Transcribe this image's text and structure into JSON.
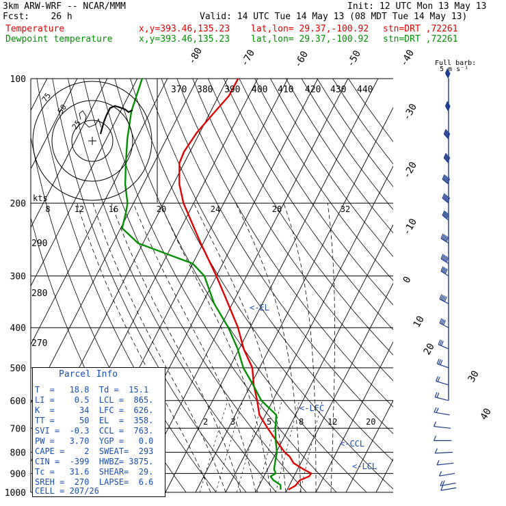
{
  "header": {
    "model": "3km ARW-WRF -- NCAR/MMM",
    "init": "Init: 12 UTC Mon 13 May 13",
    "fcst": "Fcst:    26 h",
    "valid": "Valid: 14 UTC Tue 14 May 13 (08 MDT Tue 14 May 13)",
    "temp_line": "Temperature",
    "dew_line": "Dewpoint temperature",
    "xy": "x,y=393.46,135.23",
    "latlon": "lat,lon= 29.37,-100.92",
    "stn": "stn=DRT ,72261"
  },
  "colors": {
    "temperature": "#e00000",
    "dewpoint": "#009000",
    "barbs": "#1a3a8c",
    "parcel": "#1a4db3"
  },
  "parcel_info": {
    "title": "Parcel Info",
    "rows": [
      "T  =   18.8  Td =  15.1",
      "LI =    0.5  LCL =  865.",
      "K  =     34  LFC =  626.",
      "TT =     50  EL  =  358.",
      "SVI =  -0.3  CCL =  763.",
      "PW =   3.70  YGP =   0.0",
      "CAPE =    2  SWEAT=  293",
      "CIN =  -399  HWBZ= 3875.",
      "Tc =   31.6  SHEAR=  29.",
      "SREH =  270  LAPSE=  6.6",
      "CELL = 207/26"
    ]
  },
  "chart_data": {
    "type": "line",
    "title": "",
    "ylabel": "",
    "y_axis": "pressure (hPa, log scale)",
    "pressure_levels": [
      100,
      200,
      300,
      400,
      500,
      600,
      700,
      800,
      900,
      1000
    ],
    "skewed_temperature_labels": [
      -80,
      -70,
      -60,
      -50,
      -40,
      -30,
      -20,
      -10,
      0,
      10,
      20,
      30,
      40
    ],
    "theta_labels_top": [
      370,
      380,
      390,
      400,
      410,
      420,
      430,
      440
    ],
    "theta_labels_left": [
      290,
      280,
      270
    ],
    "mixing_ratio_labels": [
      2,
      3,
      5,
      8,
      12,
      20
    ],
    "hodograph": {
      "units": "kts",
      "ring_labels": [
        "75",
        "50",
        "25"
      ],
      "speed_labels": [
        8,
        12,
        16,
        20,
        24,
        28,
        32
      ]
    },
    "barb_key": "Full barb: 5 m s⁻¹",
    "annotations": [
      {
        "label": "<-EL",
        "p": 358
      },
      {
        "label": "<-LFC",
        "p": 626
      },
      {
        "label": "<-CCL",
        "p": 763
      },
      {
        "label": "<-LCL",
        "p": 865
      }
    ],
    "series": [
      {
        "name": "Temperature",
        "p": [
          985,
          965,
          935,
          915,
          900,
          880,
          850,
          820,
          800,
          760,
          700,
          650,
          600,
          550,
          500,
          450,
          400,
          350,
          300,
          250,
          200,
          180,
          160,
          150,
          135,
          120,
          110,
          100
        ],
        "t": [
          20.4,
          22.0,
          22.6,
          25.0,
          25.2,
          22.0,
          17.6,
          15.2,
          12.8,
          9.0,
          3.0,
          -2.0,
          -5.2,
          -9.0,
          -12.4,
          -18.5,
          -24.0,
          -31.4,
          -40.0,
          -50.8,
          -63.4,
          -68.0,
          -71.6,
          -72.0,
          -71.0,
          -68.5,
          -66.6,
          -66.5
        ]
      },
      {
        "name": "Dewpoint temperature",
        "p": [
          985,
          960,
          935,
          915,
          900,
          880,
          850,
          800,
          750,
          700,
          650,
          600,
          550,
          500,
          450,
          400,
          350,
          300,
          280,
          250,
          230,
          210,
          200,
          180,
          160,
          140,
          120,
          100
        ],
        "t": [
          17.8,
          17.0,
          13.8,
          12.2,
          13.4,
          12.2,
          11.4,
          10.2,
          7.8,
          5.6,
          3.6,
          -3.8,
          -9.2,
          -15.4,
          -20.5,
          -27.2,
          -36.0,
          -44.0,
          -50.0,
          -71.6,
          -79.5,
          -81.0,
          -82.0,
          -86.0,
          -89.4,
          -93.0,
          -96.4,
          -98.4
        ]
      }
    ],
    "wind_barbs": {
      "p": [
        100,
        120,
        140,
        160,
        180,
        200,
        220,
        250,
        280,
        300,
        350,
        400,
        450,
        500,
        550,
        600,
        650,
        700,
        750,
        800,
        850,
        900,
        950,
        975
      ],
      "speed_mps": [
        36,
        36,
        35,
        35,
        34,
        33,
        32,
        30,
        28,
        26,
        23,
        20,
        17,
        15,
        12,
        10,
        8,
        6,
        5,
        5,
        6,
        7,
        8,
        6
      ],
      "dir_deg": [
        260,
        260,
        255,
        255,
        250,
        250,
        250,
        245,
        245,
        245,
        240,
        240,
        235,
        230,
        225,
        220,
        210,
        200,
        180,
        170,
        160,
        150,
        150,
        150
      ]
    }
  }
}
